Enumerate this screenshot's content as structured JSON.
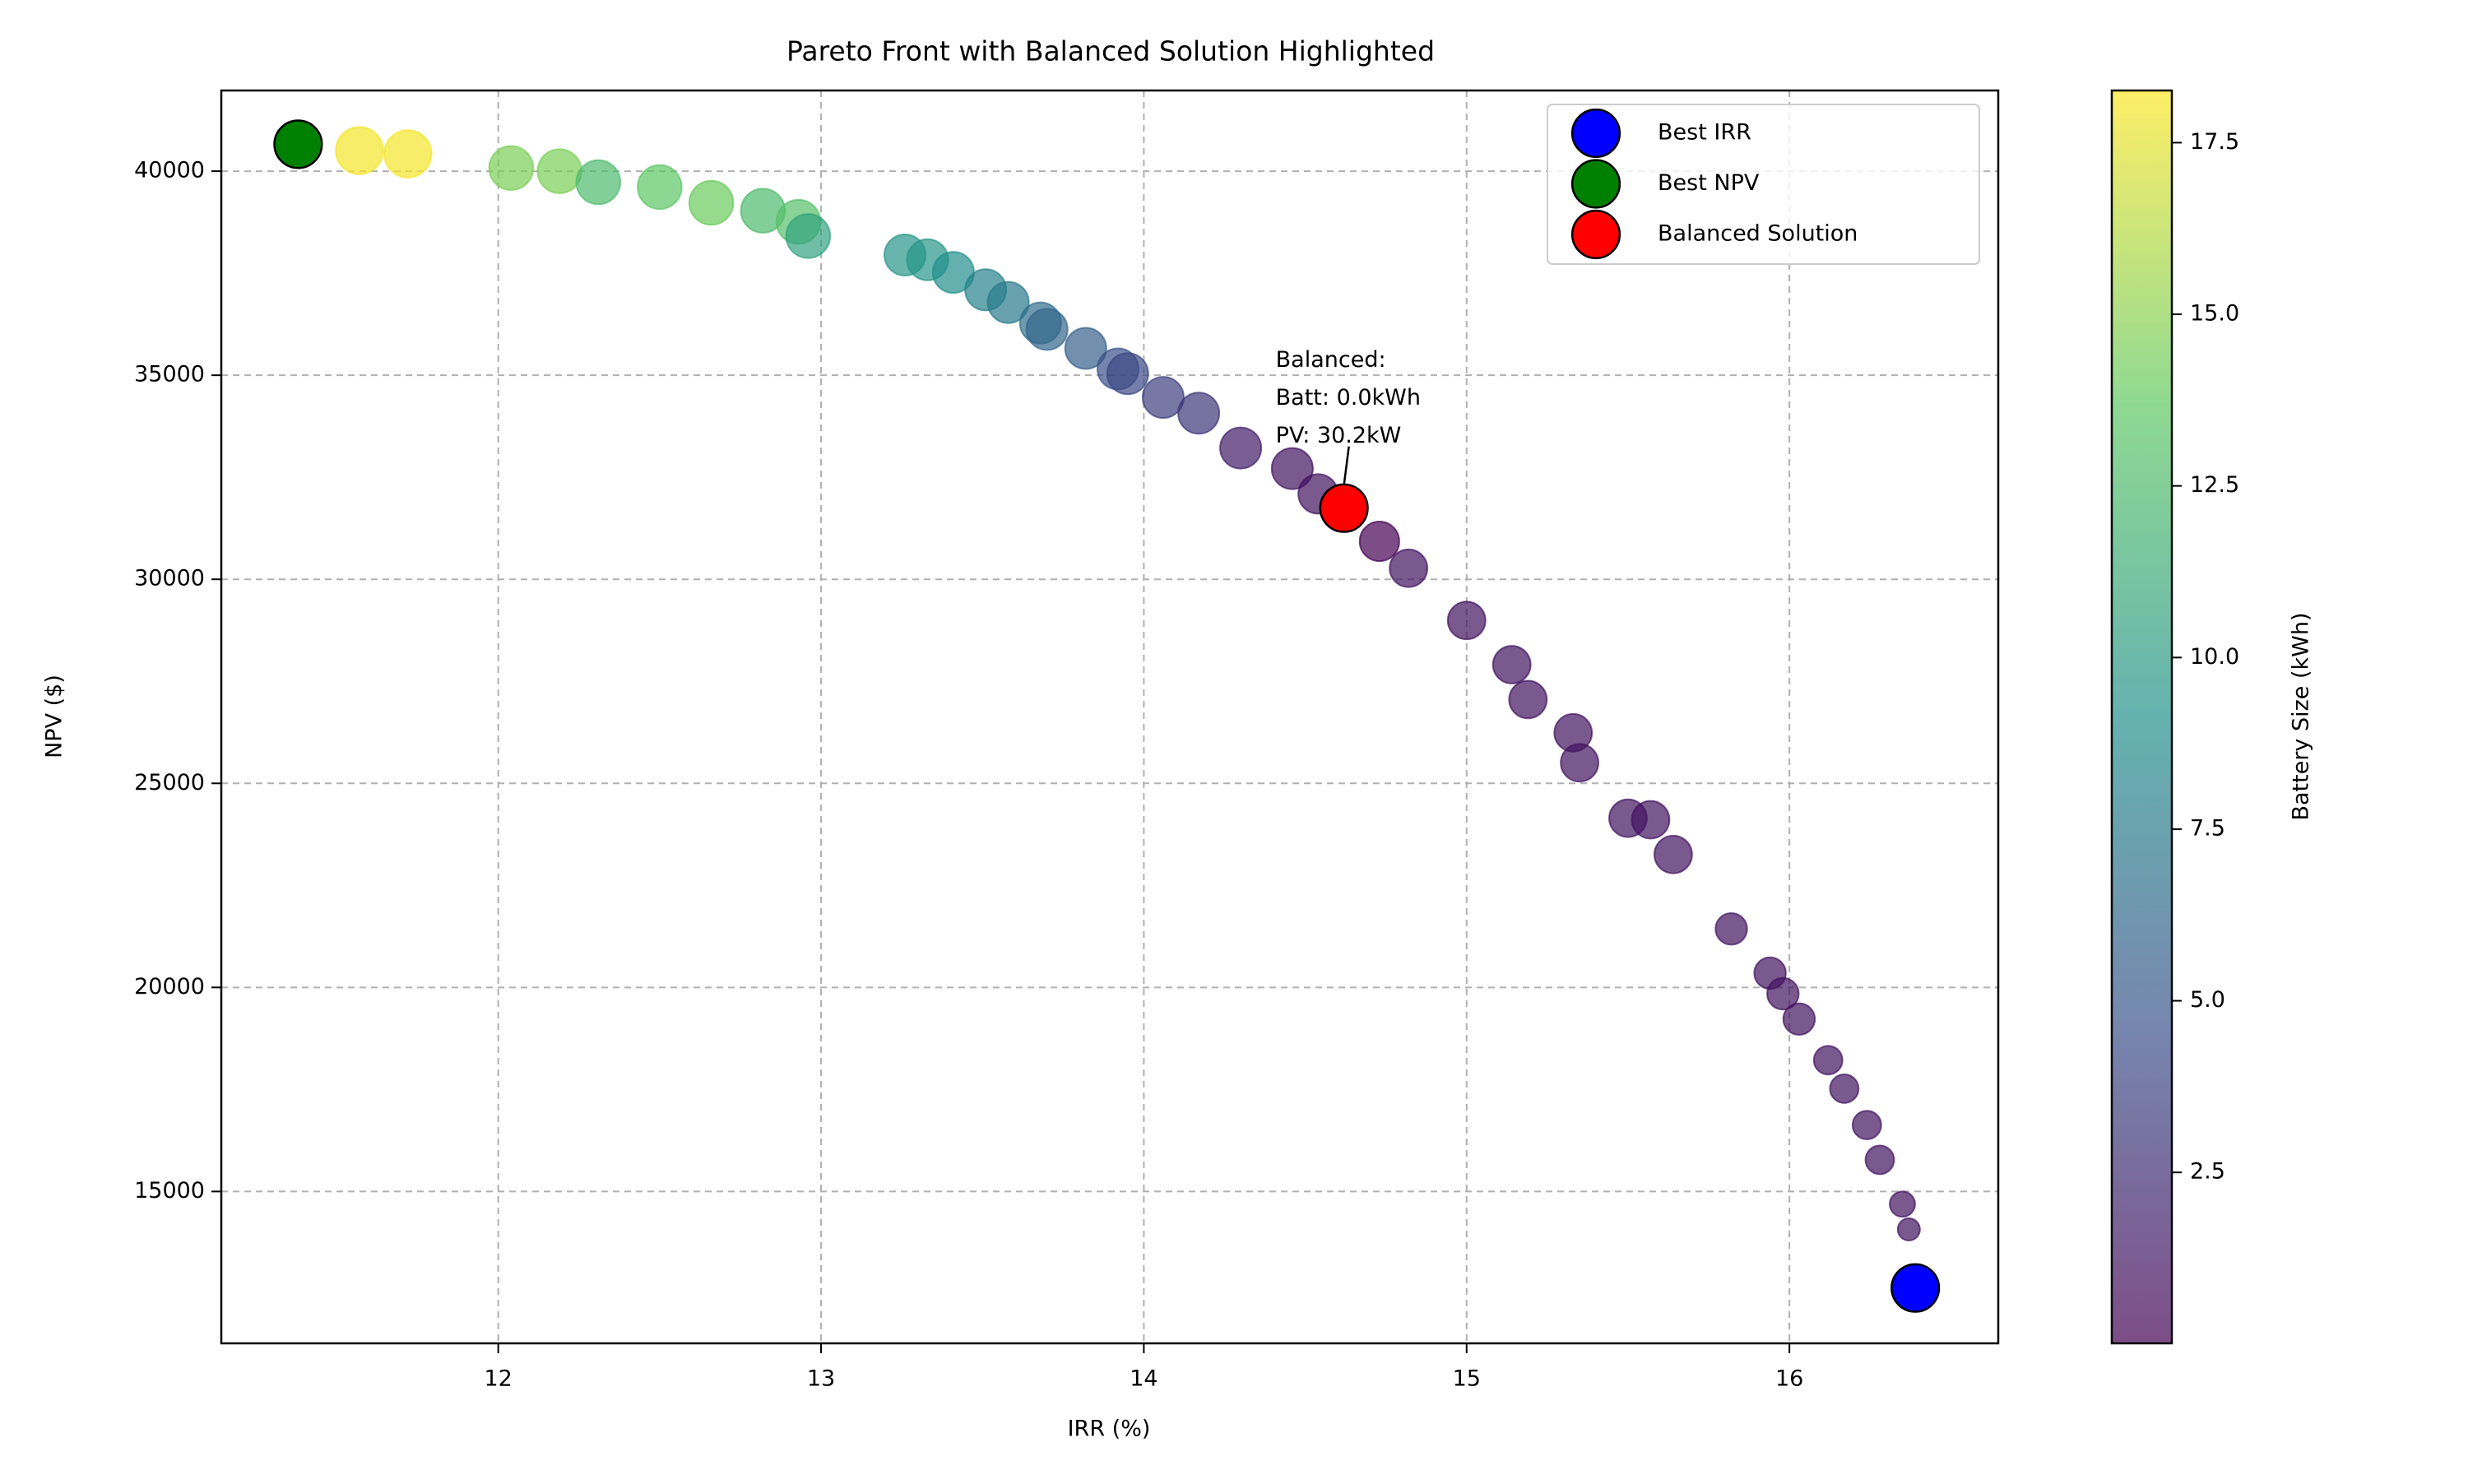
{
  "chart_data": {
    "type": "scatter",
    "title": "Pareto Front with Balanced Solution Highlighted",
    "xlabel": "IRR (%)",
    "ylabel": "NPV ($)",
    "xlim": [
      11.142,
      16.647
    ],
    "ylim": [
      11279,
      41977
    ],
    "xticks": [
      12,
      13,
      14,
      15,
      16
    ],
    "yticks": [
      15000,
      20000,
      25000,
      30000,
      35000,
      40000
    ],
    "grid": true,
    "x": [
      11.57,
      11.72,
      12.04,
      12.19,
      12.31,
      12.5,
      12.66,
      12.82,
      12.93,
      12.96,
      13.26,
      13.33,
      13.41,
      13.51,
      13.58,
      13.68,
      13.7,
      13.82,
      13.92,
      13.95,
      14.06,
      14.17,
      14.3,
      14.46,
      14.54,
      14.73,
      14.82,
      15.0,
      15.14,
      15.19,
      15.33,
      15.35,
      15.5,
      15.57,
      15.64,
      15.82,
      15.94,
      15.98,
      16.03,
      16.12,
      16.17,
      16.24,
      16.28,
      16.35,
      16.37,
      11.38
    ],
    "values": [
      40504,
      40426,
      40078,
      40000,
      39729,
      39612,
      39225,
      39031,
      38760,
      38411,
      37946,
      37829,
      37519,
      37093,
      36783,
      36279,
      36124,
      35659,
      35155,
      35039,
      34457,
      34070,
      33217,
      32713,
      32093,
      30930,
      30271,
      28992,
      27907,
      27054,
      26240,
      25504,
      24147,
      24109,
      23256,
      21434,
      20349,
      19845,
      19225,
      18217,
      17519,
      16628,
      15775,
      14690,
      14070,
      40659
    ],
    "battery": [
      18,
      18,
      14.5,
      14.5,
      12.5,
      13.5,
      14,
      12.5,
      13,
      10.5,
      9.5,
      9.5,
      9,
      8,
      7.5,
      6.5,
      6,
      5.5,
      4.5,
      4,
      3.5,
      3,
      1.5,
      1,
      1,
      0,
      1,
      1,
      1,
      1,
      1,
      1,
      1,
      1,
      1,
      1,
      1,
      1,
      1,
      1,
      1,
      1,
      1,
      1,
      1,
      18
    ],
    "sizes": [
      30,
      30,
      26,
      26,
      26,
      26,
      26,
      26,
      26,
      26,
      22.7,
      22.7,
      22.7,
      22.7,
      22.7,
      22.7,
      22.7,
      22.7,
      22.7,
      22.7,
      22.7,
      22.7,
      22.7,
      22.7,
      21,
      21,
      19,
      19,
      19,
      19,
      19,
      19,
      19,
      19,
      19,
      13.4,
      13.4,
      13.4,
      13.4,
      11,
      11,
      11,
      11,
      8.6,
      6.6,
      30
    ],
    "colorbar": {
      "label": "Battery Size (kWh)",
      "lim": [
        0.01,
        18.26
      ],
      "ticks": [
        {
          "value": 2.5,
          "label": "2.5"
        },
        {
          "value": 5,
          "label": "5.0"
        },
        {
          "value": 7.5,
          "label": "7.5"
        },
        {
          "value": 10,
          "label": "10.0"
        },
        {
          "value": 12.5,
          "label": "12.5"
        },
        {
          "value": 15,
          "label": "15.0"
        },
        {
          "value": 17.5,
          "label": "17.5"
        }
      ]
    },
    "series": [
      {
        "name": "Best IRR",
        "color": "#0000ff",
        "x": [
          16.39
        ],
        "values": [
          12636
        ]
      },
      {
        "name": "Best NPV",
        "color": "#008000",
        "x": [
          11.38
        ],
        "values": [
          40659
        ]
      },
      {
        "name": "Balanced Solution",
        "color": "#ff0000",
        "x": [
          14.62
        ],
        "values": [
          31744
        ]
      }
    ],
    "legend": "upper right",
    "annotation": [
      "Balanced:",
      "Batt: 0.0kWh",
      "PV: 30.2kW"
    ]
  }
}
